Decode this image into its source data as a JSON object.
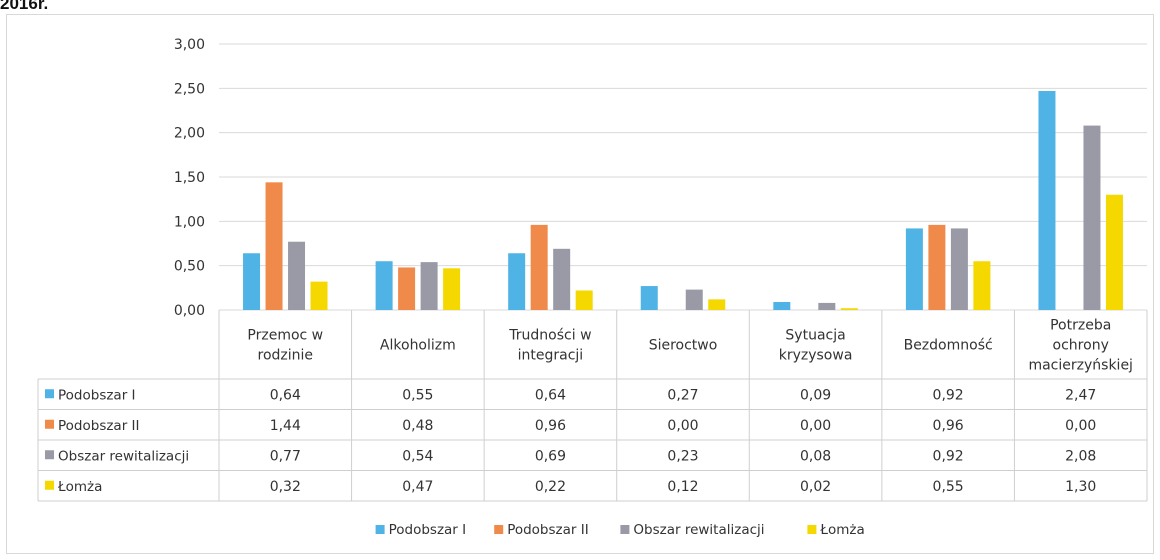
{
  "caption": "2016r.",
  "chart_data": {
    "type": "bar",
    "categories": [
      [
        "Przemoc w",
        "rodzinie"
      ],
      [
        "Alkoholizm"
      ],
      [
        "Trudności w",
        "integracji"
      ],
      [
        "Sieroctwo"
      ],
      [
        "Sytuacja",
        "kryzysowa"
      ],
      [
        "Bezdomność"
      ],
      [
        "Potrzeba",
        "ochrony",
        "macierzyńskiej"
      ]
    ],
    "series": [
      {
        "name": "Podobszar I",
        "color": "#4fb3e6",
        "values": [
          0.64,
          0.55,
          0.64,
          0.27,
          0.09,
          0.92,
          2.47
        ],
        "labels": [
          "0,64",
          "0,55",
          "0,64",
          "0,27",
          "0,09",
          "0,92",
          "2,47"
        ]
      },
      {
        "name": "Podobszar II",
        "color": "#f08a4b",
        "values": [
          1.44,
          0.48,
          0.96,
          0.0,
          0.0,
          0.96,
          0.0
        ],
        "labels": [
          "1,44",
          "0,48",
          "0,96",
          "0,00",
          "0,00",
          "0,96",
          "0,00"
        ]
      },
      {
        "name": "Obszar rewitalizacji",
        "color": "#9a9aa6",
        "values": [
          0.77,
          0.54,
          0.69,
          0.23,
          0.08,
          0.92,
          2.08
        ],
        "labels": [
          "0,77",
          "0,54",
          "0,69",
          "0,23",
          "0,08",
          "0,92",
          "2,08"
        ]
      },
      {
        "name": "Łomża",
        "color": "#f5d800",
        "values": [
          0.32,
          0.47,
          0.22,
          0.12,
          0.02,
          0.55,
          1.3
        ],
        "labels": [
          "0,32",
          "0,47",
          "0,22",
          "0,12",
          "0,02",
          "0,55",
          "1,30"
        ]
      }
    ],
    "yticks": [
      "0,00",
      "0,50",
      "1,00",
      "1,50",
      "2,00",
      "2,50",
      "3,00"
    ],
    "ylim": [
      0,
      3
    ],
    "grid": true,
    "legend_position": "bottom",
    "data_table": true
  }
}
